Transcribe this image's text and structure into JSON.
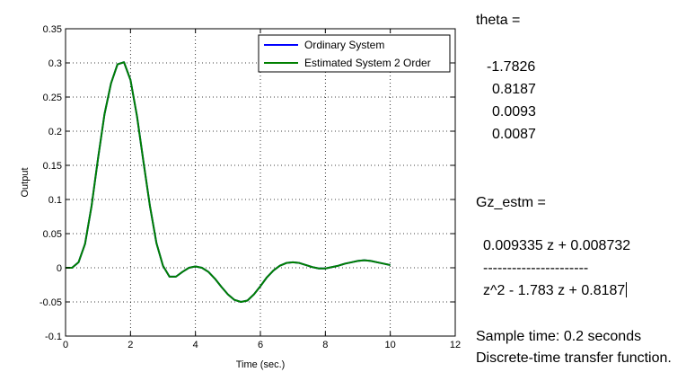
{
  "chart_data": {
    "type": "line",
    "xlabel": "Time (sec.)",
    "ylabel": "Output",
    "xlim": [
      0,
      12
    ],
    "ylim": [
      -0.1,
      0.35
    ],
    "x_ticks": [
      "0",
      "2",
      "4",
      "6",
      "8",
      "10",
      "12"
    ],
    "y_ticks": [
      "-0.1",
      "-0.05",
      "0",
      "0.05",
      "0.1",
      "0.15",
      "0.2",
      "0.25",
      "0.3",
      "0.35"
    ],
    "grid": true,
    "legend": "top-right",
    "series": [
      {
        "name": "Ordinary System",
        "color": "#0000ff",
        "x": [
          0,
          0.2,
          0.4,
          0.6,
          0.8,
          1.0,
          1.2,
          1.4,
          1.6,
          1.8,
          2.0,
          2.2,
          2.4,
          2.6,
          2.8,
          3.0,
          3.2,
          3.4,
          3.6,
          3.8,
          4.0,
          4.2,
          4.4,
          4.6,
          4.8,
          5.0,
          5.2,
          5.4,
          5.6,
          5.8,
          6.0,
          6.2,
          6.4,
          6.6,
          6.8,
          7.0,
          7.2,
          7.4,
          7.6,
          7.8,
          8.0,
          8.2,
          8.4,
          8.6,
          8.8,
          9.0,
          9.2,
          9.4,
          9.6,
          9.8,
          10.0
        ],
        "y": [
          0,
          0,
          0.008,
          0.035,
          0.09,
          0.16,
          0.225,
          0.27,
          0.298,
          0.301,
          0.275,
          0.222,
          0.155,
          0.09,
          0.036,
          0.003,
          -0.013,
          -0.013,
          -0.006,
          0.0,
          0.002,
          0.0,
          -0.006,
          -0.016,
          -0.028,
          -0.039,
          -0.047,
          -0.05,
          -0.048,
          -0.039,
          -0.027,
          -0.014,
          -0.004,
          0.003,
          0.007,
          0.008,
          0.007,
          0.004,
          0.001,
          -0.001,
          -0.001,
          0.001,
          0.003,
          0.006,
          0.008,
          0.01,
          0.011,
          0.01,
          0.008,
          0.006,
          0.004
        ]
      },
      {
        "name": "Estimated System 2 Order",
        "color": "#008000",
        "x": [
          0,
          0.2,
          0.4,
          0.6,
          0.8,
          1.0,
          1.2,
          1.4,
          1.6,
          1.8,
          2.0,
          2.2,
          2.4,
          2.6,
          2.8,
          3.0,
          3.2,
          3.4,
          3.6,
          3.8,
          4.0,
          4.2,
          4.4,
          4.6,
          4.8,
          5.0,
          5.2,
          5.4,
          5.6,
          5.8,
          6.0,
          6.2,
          6.4,
          6.6,
          6.8,
          7.0,
          7.2,
          7.4,
          7.6,
          7.8,
          8.0,
          8.2,
          8.4,
          8.6,
          8.8,
          9.0,
          9.2,
          9.4,
          9.6,
          9.8,
          10.0
        ],
        "y": [
          0,
          0,
          0.008,
          0.035,
          0.09,
          0.16,
          0.225,
          0.27,
          0.298,
          0.301,
          0.275,
          0.222,
          0.155,
          0.09,
          0.036,
          0.003,
          -0.013,
          -0.013,
          -0.006,
          0.0,
          0.002,
          0.0,
          -0.006,
          -0.016,
          -0.028,
          -0.039,
          -0.047,
          -0.05,
          -0.048,
          -0.039,
          -0.027,
          -0.014,
          -0.004,
          0.003,
          0.007,
          0.008,
          0.007,
          0.004,
          0.001,
          -0.001,
          -0.001,
          0.001,
          0.003,
          0.006,
          0.008,
          0.01,
          0.011,
          0.01,
          0.008,
          0.006,
          0.004
        ]
      }
    ]
  },
  "console": {
    "theta_label": "theta =",
    "theta_values": [
      "-1.7826",
      "0.8187",
      "0.0093",
      "0.0087"
    ],
    "gz_label": "Gz_estm =",
    "numerator": "0.009335 z + 0.008732",
    "divider": "----------------------",
    "denominator": "z^2 - 1.783 z + 0.8187",
    "sample_time": "Sample time: 0.2 seconds",
    "tf_type": "Discrete-time transfer function."
  }
}
